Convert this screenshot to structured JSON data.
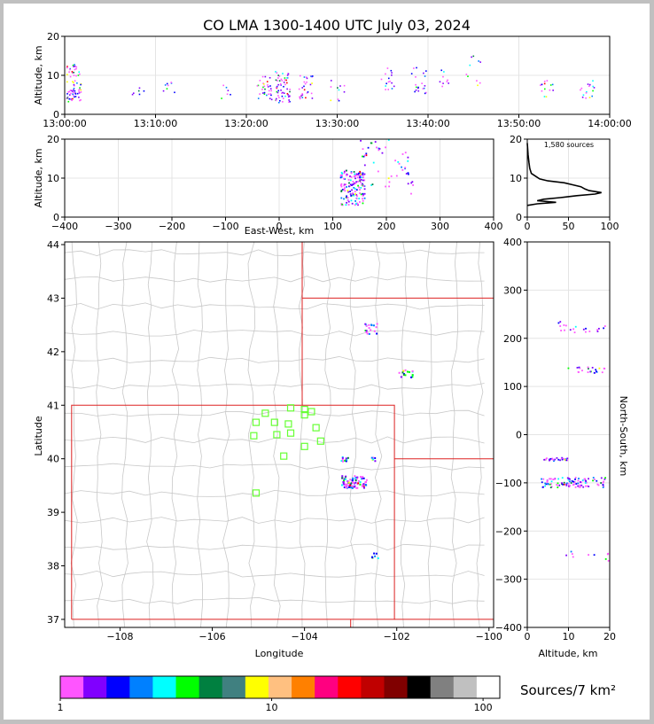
{
  "title": "CO LMA 1300-1400 UTC July 03, 2024",
  "source_count_text": "1,580 sources",
  "colorbar_label": "Sources/7 km²",
  "colors": {
    "frame": "#c0c0c0",
    "state_lines": "#dd2222",
    "county_lines": "#c8c8c8",
    "stations": "#66ff33"
  },
  "chart_data": [
    {
      "type": "scatter",
      "name": "altitude-vs-time",
      "xlabel": "",
      "ylabel": "Altitude, km",
      "xticks": [
        "13:00:00",
        "13:10:00",
        "13:20:00",
        "13:30:00",
        "13:40:00",
        "13:50:00",
        "14:00:00"
      ],
      "xlim_minutes": [
        0,
        60
      ],
      "ylim": [
        0,
        20
      ],
      "yticks": [
        0,
        10,
        20
      ],
      "clusters": [
        {
          "t": 1.0,
          "alt": [
            3,
            13
          ],
          "n": 70
        },
        {
          "t": 8.0,
          "alt": [
            5,
            7
          ],
          "n": 6
        },
        {
          "t": 11.5,
          "alt": [
            5,
            9
          ],
          "n": 8
        },
        {
          "t": 18.0,
          "alt": [
            4,
            8
          ],
          "n": 6
        },
        {
          "t": 22.0,
          "alt": [
            3,
            10
          ],
          "n": 30
        },
        {
          "t": 24.0,
          "alt": [
            3,
            11
          ],
          "n": 60
        },
        {
          "t": 26.5,
          "alt": [
            4,
            10
          ],
          "n": 30
        },
        {
          "t": 30.0,
          "alt": [
            2,
            9
          ],
          "n": 10
        },
        {
          "t": 35.5,
          "alt": [
            6,
            12
          ],
          "n": 16
        },
        {
          "t": 39.0,
          "alt": [
            5,
            12
          ],
          "n": 20
        },
        {
          "t": 42.0,
          "alt": [
            6,
            12
          ],
          "n": 10
        },
        {
          "t": 45.0,
          "alt": [
            7,
            15
          ],
          "n": 10
        },
        {
          "t": 53.0,
          "alt": [
            4,
            9
          ],
          "n": 14
        },
        {
          "t": 57.5,
          "alt": [
            4,
            9
          ],
          "n": 16
        }
      ]
    },
    {
      "type": "scatter",
      "name": "altitude-vs-east-west",
      "xlabel": "East-West, km",
      "ylabel": "Altitude, km",
      "xlim": [
        -400,
        400
      ],
      "xticks": [
        -400,
        -300,
        -200,
        -100,
        0,
        100,
        200,
        300,
        400
      ],
      "ylim": [
        0,
        20
      ],
      "yticks": [
        0,
        10,
        20
      ],
      "clusters": [
        {
          "x": [
            115,
            160
          ],
          "alt": [
            3,
            12
          ],
          "n": 150
        },
        {
          "x": [
            150,
            210
          ],
          "alt": [
            7,
            20
          ],
          "n": 30
        },
        {
          "x": [
            215,
            250
          ],
          "alt": [
            6,
            17
          ],
          "n": 20
        }
      ]
    },
    {
      "type": "line",
      "name": "altitude-histogram",
      "annotation": "1,580 sources",
      "xlim": [
        0,
        100
      ],
      "xticks": [
        0,
        50,
        100
      ],
      "ylim": [
        0,
        20
      ],
      "yticks": [
        0,
        10,
        20
      ],
      "points": [
        [
          0,
          3
        ],
        [
          12,
          3.4
        ],
        [
          35,
          3.8
        ],
        [
          12,
          4.2
        ],
        [
          20,
          4.6
        ],
        [
          40,
          5.0
        ],
        [
          60,
          5.5
        ],
        [
          82,
          5.9
        ],
        [
          90,
          6.3
        ],
        [
          75,
          6.8
        ],
        [
          70,
          7.2
        ],
        [
          65,
          7.8
        ],
        [
          55,
          8.3
        ],
        [
          45,
          8.8
        ],
        [
          25,
          9.3
        ],
        [
          15,
          9.8
        ],
        [
          10,
          10.5
        ],
        [
          5,
          11.2
        ],
        [
          3,
          12.5
        ],
        [
          2,
          14
        ],
        [
          1,
          16
        ],
        [
          0,
          19
        ]
      ]
    },
    {
      "type": "scatter",
      "name": "plan-view-map",
      "xlabel": "Longitude",
      "ylabel": "Latitude",
      "xlim": [
        -109.2,
        -99.9
      ],
      "xticks": [
        -108,
        -106,
        -104,
        -102,
        -100
      ],
      "ylim": [
        36.85,
        44.05
      ],
      "yticks": [
        37,
        38,
        39,
        40,
        41,
        42,
        43,
        44
      ],
      "clusters": [
        {
          "lon": [
            -102.7,
            -102.4
          ],
          "lat": [
            42.33,
            42.52
          ],
          "n": 18
        },
        {
          "lon": [
            -101.95,
            -101.65
          ],
          "lat": [
            41.52,
            41.66
          ],
          "n": 16
        },
        {
          "lon": [
            -103.2,
            -103.05
          ],
          "lat": [
            39.95,
            40.03
          ],
          "n": 12
        },
        {
          "lon": [
            -102.55,
            -102.45
          ],
          "lat": [
            39.95,
            40.02
          ],
          "n": 6
        },
        {
          "lon": [
            -103.2,
            -102.65
          ],
          "lat": [
            39.45,
            39.68
          ],
          "n": 80
        },
        {
          "lon": [
            -102.55,
            -102.4
          ],
          "lat": [
            38.1,
            38.25
          ],
          "n": 6
        }
      ],
      "stations": [
        [
          -104.3,
          40.95
        ],
        [
          -104.0,
          40.92
        ],
        [
          -103.85,
          40.88
        ],
        [
          -104.85,
          40.85
        ],
        [
          -104.0,
          40.82
        ],
        [
          -105.05,
          40.68
        ],
        [
          -104.65,
          40.68
        ],
        [
          -104.35,
          40.65
        ],
        [
          -103.75,
          40.58
        ],
        [
          -104.6,
          40.45
        ],
        [
          -104.3,
          40.48
        ],
        [
          -105.1,
          40.43
        ],
        [
          -103.65,
          40.33
        ],
        [
          -104.0,
          40.23
        ],
        [
          -104.45,
          40.05
        ],
        [
          -105.05,
          39.36
        ]
      ]
    },
    {
      "type": "scatter",
      "name": "north-south-vs-altitude",
      "xlabel": "Altitude, km",
      "ylabel": "North-South, km",
      "xlim": [
        0,
        20
      ],
      "xticks": [
        0,
        10,
        20
      ],
      "ylim": [
        -400,
        400
      ],
      "yticks": [
        -400,
        -300,
        -200,
        -100,
        0,
        100,
        200,
        300,
        400
      ],
      "clusters": [
        {
          "alt": [
            7,
            19
          ],
          "ns": [
            212,
            235
          ],
          "n": 20
        },
        {
          "alt": [
            7,
            19
          ],
          "ns": [
            128,
            140
          ],
          "n": 22
        },
        {
          "alt": [
            4,
            10
          ],
          "ns": [
            -55,
            -48
          ],
          "n": 25
        },
        {
          "alt": [
            3,
            19
          ],
          "ns": [
            -110,
            -88
          ],
          "n": 100
        },
        {
          "alt": [
            9,
            20
          ],
          "ns": [
            -262,
            -242
          ],
          "n": 10
        }
      ]
    },
    {
      "type": "heatmap",
      "name": "colorbar",
      "scale": "log",
      "range": [
        1,
        120
      ],
      "tick_labels": [
        "1",
        "10",
        "100"
      ],
      "tick_values": [
        1,
        10,
        100
      ],
      "colors": [
        "#ff55ff",
        "#8000ff",
        "#0000ff",
        "#0080ff",
        "#00ffff",
        "#00ff00",
        "#008040",
        "#408080",
        "#ffff00",
        "#ffc080",
        "#ff8000",
        "#ff0080",
        "#ff0000",
        "#c00000",
        "#800000",
        "#000000",
        "#808080",
        "#c0c0c0",
        "#ffffff"
      ]
    }
  ]
}
